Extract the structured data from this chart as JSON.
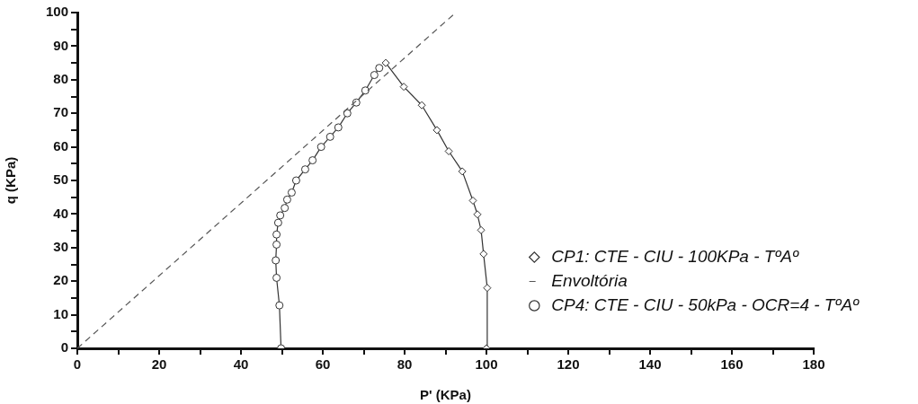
{
  "chart_data": {
    "type": "line",
    "xlabel": "P' (KPa)",
    "ylabel": "q (KPa)",
    "xlim": [
      0,
      180
    ],
    "ylim": [
      0,
      100
    ],
    "xticks": [
      0,
      {
        "value": 10,
        "label": null
      },
      20,
      {
        "value": 30,
        "label": null
      },
      40,
      {
        "value": 50,
        "label": null
      },
      60,
      {
        "value": 70,
        "label": null
      },
      80,
      {
        "value": 90,
        "label": null
      },
      100,
      {
        "value": 110,
        "label": null
      },
      120,
      {
        "value": 130,
        "label": null
      },
      140,
      {
        "value": 150,
        "label": null
      },
      160,
      {
        "value": 170,
        "label": null
      },
      180
    ],
    "yticks": [
      0,
      {
        "value": 5,
        "label": null
      },
      10,
      {
        "value": 15,
        "label": null
      },
      20,
      {
        "value": 25,
        "label": null
      },
      30,
      {
        "value": 35,
        "label": null
      },
      40,
      {
        "value": 45,
        "label": null
      },
      50,
      {
        "value": 55,
        "label": null
      },
      60,
      {
        "value": 65,
        "label": null
      },
      70,
      {
        "value": 75,
        "label": null
      },
      80,
      {
        "value": 85,
        "label": null
      },
      90,
      {
        "value": 95,
        "label": null
      },
      100
    ],
    "grid": false,
    "legend": "bottom right",
    "series": [
      {
        "name": "CP1: CTE - CIU - 100KPa - TºAº",
        "color": "#333333",
        "marker": "diamond",
        "line_style": "solid",
        "x": [
          100,
          100.2,
          99.3,
          98.7,
          97.8,
          96.7,
          94.1,
          90.8,
          87.9,
          84.2,
          79.8,
          75.4
        ],
        "values": [
          0,
          18,
          28.1,
          35.2,
          39.9,
          44,
          52.7,
          58.7,
          65,
          72.4,
          77.9,
          85
        ]
      },
      {
        "name": "Envoltória",
        "color": "#555555",
        "marker": "none",
        "line_style": "dashed",
        "x": [
          0,
          92.5
        ],
        "values": [
          0,
          100
        ]
      },
      {
        "name": "CP4: CTE - CIU - 50kPa - OCR=4 - TºAº",
        "color": "#333333",
        "marker": "circle",
        "line_style": "solid",
        "x": [
          49.8,
          49.4,
          48.7,
          48.5,
          48.7,
          48.7,
          49.1,
          49.6,
          50.7,
          51.3,
          52.4,
          53.5,
          55.7,
          57.5,
          59.6,
          61.8,
          63.8,
          66,
          68.2,
          70.4,
          72.6,
          73.8
        ],
        "values": [
          0,
          12.8,
          21,
          26.2,
          30.9,
          33.9,
          37.4,
          39.6,
          41.8,
          44.3,
          46.4,
          50,
          53.3,
          56,
          60,
          63,
          65.8,
          70,
          73.2,
          76.8,
          81.4,
          83.5
        ]
      }
    ]
  }
}
